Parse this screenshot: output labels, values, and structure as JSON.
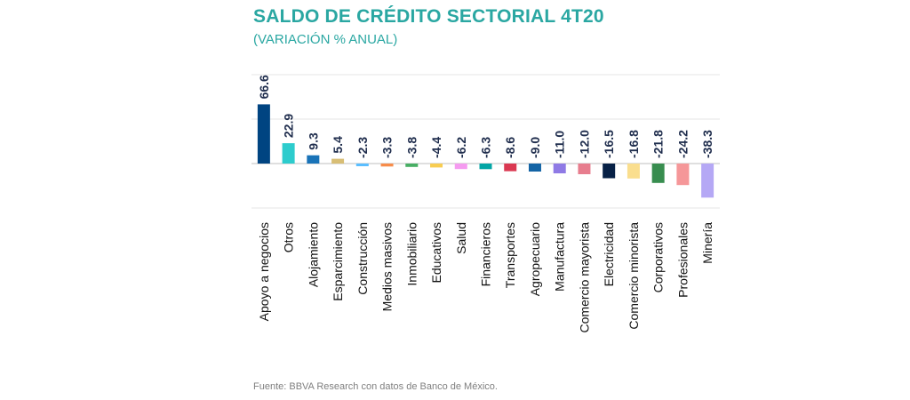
{
  "title": "SALDO DE CRÉDITO SECTORIAL 4T20",
  "subtitle": "(VARIACIÓN % ANUAL)",
  "source": "Fuente: BBVA Research con datos de Banco de México.",
  "chart_data": {
    "type": "bar",
    "title": "SALDO DE CRÉDITO SECTORIAL 4T20",
    "subtitle": "(VARIACIÓN % ANUAL)",
    "xlabel": "",
    "ylabel": "",
    "ylim": [
      -50,
      100
    ],
    "grid": true,
    "legend": "none",
    "categories": [
      "Apoyo a negocios",
      "Otros",
      "Alojamiento",
      "Esparcimiento",
      "Construcción",
      "Medios masivos",
      "Inmobiliario",
      "Educativos",
      "Salud",
      "Financieros",
      "Transportes",
      "Agropecuario",
      "Manufactura",
      "Comercio mayorista",
      "Electricidad",
      "Comercio minorista",
      "Corporativos",
      "Profesionales",
      "Minería"
    ],
    "values": [
      66.6,
      22.9,
      9.3,
      5.4,
      -2.3,
      -3.3,
      -3.8,
      -4.4,
      -6.2,
      -6.3,
      -8.6,
      -9.0,
      -11.0,
      -12.0,
      -16.5,
      -16.8,
      -21.8,
      -24.2,
      -38.3
    ],
    "value_labels": [
      "66.6",
      "22.9",
      "9.3",
      "5.4",
      "-2.3",
      "-3.3",
      "-3.8",
      "-4.4",
      "-6.2",
      "-6.3",
      "-8.6",
      "-9.0",
      "-11.0",
      "-12.0",
      "-16.5",
      "-16.8",
      "-21.8",
      "-24.2",
      "-38.3"
    ],
    "colors": [
      "#004481",
      "#2dcccd",
      "#1973b8",
      "#d8be75",
      "#5bbeff",
      "#f78c4a",
      "#48ae64",
      "#f8cd51",
      "#f59bf0",
      "#02a5a5",
      "#da3851",
      "#1464a5",
      "#8f7ae5",
      "#e77d8e",
      "#072146",
      "#fade8e",
      "#388d4f",
      "#f59799",
      "#b5a8f5"
    ]
  }
}
